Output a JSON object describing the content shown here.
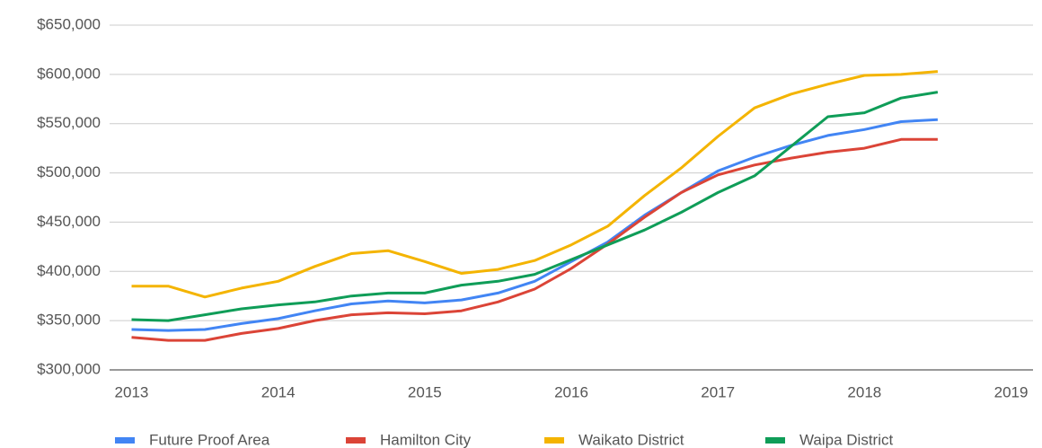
{
  "chart_data": {
    "type": "line",
    "x": [
      2013,
      2013.25,
      2013.5,
      2013.75,
      2014,
      2014.25,
      2014.5,
      2014.75,
      2015,
      2015.25,
      2015.5,
      2015.75,
      2016,
      2016.25,
      2016.5,
      2016.75,
      2017,
      2017.25,
      2017.5,
      2017.75,
      2018,
      2018.25,
      2018.5
    ],
    "series": [
      {
        "name": "Future Proof Area",
        "color": "#4285f4",
        "values": [
          341000,
          340000,
          341000,
          347000,
          352000,
          360000,
          367000,
          370000,
          368000,
          371000,
          378000,
          390000,
          410000,
          430000,
          457000,
          480000,
          502000,
          516000,
          528000,
          538000,
          544000,
          552000,
          554000
        ]
      },
      {
        "name": "Hamilton City",
        "color": "#db4437",
        "values": [
          333000,
          330000,
          330000,
          337000,
          342000,
          350000,
          356000,
          358000,
          357000,
          360000,
          369000,
          382000,
          403000,
          428000,
          455000,
          480000,
          498000,
          508000,
          515000,
          521000,
          525000,
          534000,
          534000
        ]
      },
      {
        "name": "Waikato District",
        "color": "#f4b400",
        "values": [
          385000,
          385000,
          374000,
          383000,
          390000,
          405000,
          418000,
          421000,
          410000,
          398000,
          402000,
          411000,
          427000,
          446000,
          477000,
          505000,
          537000,
          566000,
          580000,
          590000,
          599000,
          600000,
          603000
        ]
      },
      {
        "name": "Waipa District",
        "color": "#0f9d58",
        "values": [
          351000,
          350000,
          356000,
          362000,
          366000,
          369000,
          375000,
          378000,
          378000,
          386000,
          390000,
          397000,
          412000,
          427000,
          442000,
          460000,
          480000,
          497000,
          527000,
          557000,
          561000,
          576000,
          582000
        ]
      }
    ],
    "xlim": [
      2012.85,
      2019.15
    ],
    "xticks": [
      2013,
      2014,
      2015,
      2016,
      2017,
      2018,
      2019
    ],
    "ylim": [
      300000,
      650000
    ],
    "yticks": [
      {
        "value": 300000,
        "label": "$300,000"
      },
      {
        "value": 350000,
        "label": "$350,000"
      },
      {
        "value": 400000,
        "label": "$400,000"
      },
      {
        "value": 450000,
        "label": "$450,000"
      },
      {
        "value": 500000,
        "label": "$500,000"
      },
      {
        "value": 550000,
        "label": "$550,000"
      },
      {
        "value": 600000,
        "label": "$600,000"
      },
      {
        "value": 650000,
        "label": "$650,000"
      }
    ],
    "grid": true,
    "legend": "bottom"
  }
}
